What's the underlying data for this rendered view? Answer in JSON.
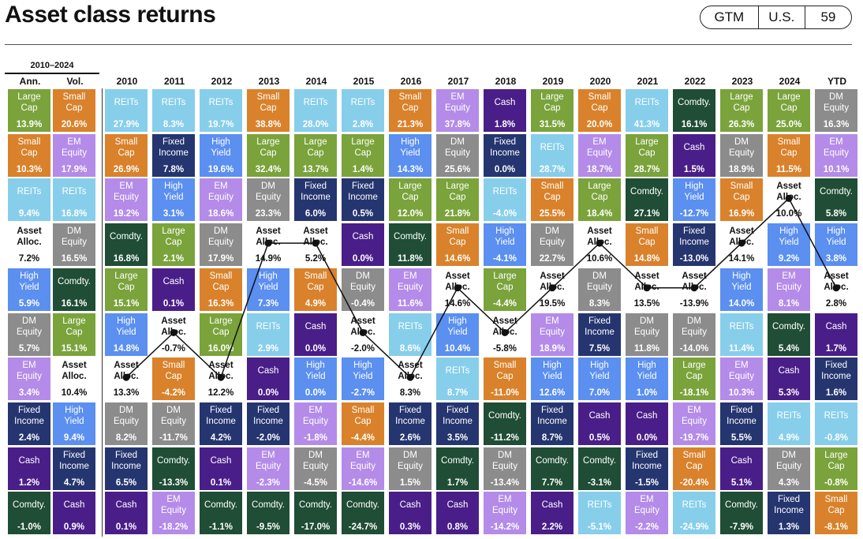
{
  "header": {
    "title": "Asset class returns",
    "badge": [
      "GTM",
      "U.S.",
      "59"
    ]
  },
  "period_label": "2010–2024",
  "columns": [
    "Ann.",
    "Vol.",
    "2010",
    "2011",
    "2012",
    "2013",
    "2014",
    "2015",
    "2016",
    "2017",
    "2018",
    "2019",
    "2020",
    "2021",
    "2022",
    "2023",
    "2024",
    "YTD"
  ],
  "colors": {
    "REITs": "#87ceeb",
    "Small Cap": "#d9822b",
    "Large Cap": "#7aa33b",
    "EM Equity": "#b48be8",
    "DM Equity": "#8c8c8c",
    "Fixed Income": "#25356f",
    "High Yield": "#5b8ff0",
    "Cash": "#4a1e88",
    "Comdty.": "#1f4d35",
    "Asset Alloc.": "#ffffff"
  },
  "chart_data": {
    "type": "table",
    "title": "Asset class returns",
    "columns": [
      "Ann.",
      "Vol.",
      "2010",
      "2011",
      "2012",
      "2013",
      "2014",
      "2015",
      "2016",
      "2017",
      "2018",
      "2019",
      "2020",
      "2021",
      "2022",
      "2023",
      "2024",
      "YTD"
    ],
    "series_highlight": "Asset Alloc.",
    "data": [
      [
        [
          "Large Cap",
          "13.9%"
        ],
        [
          "Small Cap",
          "10.3%"
        ],
        [
          "REITs",
          "9.4%"
        ],
        [
          "Asset Alloc.",
          "7.2%"
        ],
        [
          "High Yield",
          "5.9%"
        ],
        [
          "DM Equity",
          "5.7%"
        ],
        [
          "EM Equity",
          "3.4%"
        ],
        [
          "Fixed Income",
          "2.4%"
        ],
        [
          "Cash",
          "1.2%"
        ],
        [
          "Comdty.",
          "-1.0%"
        ]
      ],
      [
        [
          "Small Cap",
          "20.6%"
        ],
        [
          "EM Equity",
          "17.9%"
        ],
        [
          "REITs",
          "16.8%"
        ],
        [
          "DM Equity",
          "16.5%"
        ],
        [
          "Comdty.",
          "16.1%"
        ],
        [
          "Large Cap",
          "15.1%"
        ],
        [
          "Asset Alloc.",
          "10.4%"
        ],
        [
          "High Yield",
          "9.4%"
        ],
        [
          "Fixed Income",
          "4.7%"
        ],
        [
          "Cash",
          "0.9%"
        ]
      ],
      [
        [
          "REITs",
          "27.9%"
        ],
        [
          "Small Cap",
          "26.9%"
        ],
        [
          "EM Equity",
          "19.2%"
        ],
        [
          "Comdty.",
          "16.8%"
        ],
        [
          "Large Cap",
          "15.1%"
        ],
        [
          "High Yield",
          "14.8%"
        ],
        [
          "Asset Alloc.",
          "13.3%"
        ],
        [
          "DM Equity",
          "8.2%"
        ],
        [
          "Fixed Income",
          "6.5%"
        ],
        [
          "Cash",
          "0.1%"
        ]
      ],
      [
        [
          "REITs",
          "8.3%"
        ],
        [
          "Fixed Income",
          "7.8%"
        ],
        [
          "High Yield",
          "3.1%"
        ],
        [
          "Large Cap",
          "2.1%"
        ],
        [
          "Cash",
          "0.1%"
        ],
        [
          "Asset Alloc.",
          "-0.7%"
        ],
        [
          "Small Cap",
          "-4.2%"
        ],
        [
          "DM Equity",
          "-11.7%"
        ],
        [
          "Comdty.",
          "-13.3%"
        ],
        [
          "EM Equity",
          "-18.2%"
        ]
      ],
      [
        [
          "REITs",
          "19.7%"
        ],
        [
          "High Yield",
          "19.6%"
        ],
        [
          "EM Equity",
          "18.6%"
        ],
        [
          "DM Equity",
          "17.9%"
        ],
        [
          "Small Cap",
          "16.3%"
        ],
        [
          "Large Cap",
          "16.0%"
        ],
        [
          "Asset Alloc.",
          "12.2%"
        ],
        [
          "Fixed Income",
          "4.2%"
        ],
        [
          "Cash",
          "0.1%"
        ],
        [
          "Comdty.",
          "-1.1%"
        ]
      ],
      [
        [
          "Small Cap",
          "38.8%"
        ],
        [
          "Large Cap",
          "32.4%"
        ],
        [
          "DM Equity",
          "23.3%"
        ],
        [
          "Asset Alloc.",
          "14.9%"
        ],
        [
          "High Yield",
          "7.3%"
        ],
        [
          "REITs",
          "2.9%"
        ],
        [
          "Cash",
          "0.0%"
        ],
        [
          "Fixed Income",
          "-2.0%"
        ],
        [
          "EM Equity",
          "-2.3%"
        ],
        [
          "Comdty.",
          "-9.5%"
        ]
      ],
      [
        [
          "REITs",
          "28.0%"
        ],
        [
          "Large Cap",
          "13.7%"
        ],
        [
          "Fixed Income",
          "6.0%"
        ],
        [
          "Asset Alloc.",
          "5.2%"
        ],
        [
          "Small Cap",
          "4.9%"
        ],
        [
          "Cash",
          "0.0%"
        ],
        [
          "High Yield",
          "0.0%"
        ],
        [
          "EM Equity",
          "-1.8%"
        ],
        [
          "DM Equity",
          "-4.5%"
        ],
        [
          "Comdty.",
          "-17.0%"
        ]
      ],
      [
        [
          "REITs",
          "2.8%"
        ],
        [
          "Large Cap",
          "1.4%"
        ],
        [
          "Fixed Income",
          "0.5%"
        ],
        [
          "Cash",
          "0.0%"
        ],
        [
          "DM Equity",
          "-0.4%"
        ],
        [
          "Asset Alloc.",
          "-2.0%"
        ],
        [
          "High Yield",
          "-2.7%"
        ],
        [
          "Small Cap",
          "-4.4%"
        ],
        [
          "EM Equity",
          "-14.6%"
        ],
        [
          "Comdty.",
          "-24.7%"
        ]
      ],
      [
        [
          "Small Cap",
          "21.3%"
        ],
        [
          "High Yield",
          "14.3%"
        ],
        [
          "Large Cap",
          "12.0%"
        ],
        [
          "Comdty.",
          "11.8%"
        ],
        [
          "EM Equity",
          "11.6%"
        ],
        [
          "REITs",
          "8.6%"
        ],
        [
          "Asset Alloc.",
          "8.3%"
        ],
        [
          "Fixed Income",
          "2.6%"
        ],
        [
          "DM Equity",
          "1.5%"
        ],
        [
          "Cash",
          "0.3%"
        ]
      ],
      [
        [
          "EM Equity",
          "37.8%"
        ],
        [
          "DM Equity",
          "25.6%"
        ],
        [
          "Large Cap",
          "21.8%"
        ],
        [
          "Small Cap",
          "14.6%"
        ],
        [
          "Asset Alloc.",
          "14.6%"
        ],
        [
          "High Yield",
          "10.4%"
        ],
        [
          "REITs",
          "8.7%"
        ],
        [
          "Fixed Income",
          "3.5%"
        ],
        [
          "Comdty.",
          "1.7%"
        ],
        [
          "Cash",
          "0.8%"
        ]
      ],
      [
        [
          "Cash",
          "1.8%"
        ],
        [
          "Fixed Income",
          "0.0%"
        ],
        [
          "REITs",
          "-4.0%"
        ],
        [
          "High Yield",
          "-4.1%"
        ],
        [
          "Large Cap",
          "-4.4%"
        ],
        [
          "Asset Alloc.",
          "-5.8%"
        ],
        [
          "Small Cap",
          "-11.0%"
        ],
        [
          "Comdty.",
          "-11.2%"
        ],
        [
          "DM Equity",
          "-13.4%"
        ],
        [
          "EM Equity",
          "-14.2%"
        ]
      ],
      [
        [
          "Large Cap",
          "31.5%"
        ],
        [
          "REITs",
          "28.7%"
        ],
        [
          "Small Cap",
          "25.5%"
        ],
        [
          "DM Equity",
          "22.7%"
        ],
        [
          "Asset Alloc.",
          "19.5%"
        ],
        [
          "EM Equity",
          "18.9%"
        ],
        [
          "High Yield",
          "12.6%"
        ],
        [
          "Fixed Income",
          "8.7%"
        ],
        [
          "Comdty.",
          "7.7%"
        ],
        [
          "Cash",
          "2.2%"
        ]
      ],
      [
        [
          "Small Cap",
          "20.0%"
        ],
        [
          "EM Equity",
          "18.7%"
        ],
        [
          "Large Cap",
          "18.4%"
        ],
        [
          "Asset Alloc.",
          "10.6%"
        ],
        [
          "DM Equity",
          "8.3%"
        ],
        [
          "Fixed Income",
          "7.5%"
        ],
        [
          "High Yield",
          "7.0%"
        ],
        [
          "Cash",
          "0.5%"
        ],
        [
          "Comdty.",
          "-3.1%"
        ],
        [
          "REITs",
          "-5.1%"
        ]
      ],
      [
        [
          "REITs",
          "41.3%"
        ],
        [
          "Large Cap",
          "28.7%"
        ],
        [
          "Comdty.",
          "27.1%"
        ],
        [
          "Small Cap",
          "14.8%"
        ],
        [
          "Asset Alloc.",
          "13.5%"
        ],
        [
          "DM Equity",
          "11.8%"
        ],
        [
          "High Yield",
          "1.0%"
        ],
        [
          "Cash",
          "0.0%"
        ],
        [
          "Fixed Income",
          "-1.5%"
        ],
        [
          "EM Equity",
          "-2.2%"
        ]
      ],
      [
        [
          "Comdty.",
          "16.1%"
        ],
        [
          "Cash",
          "1.5%"
        ],
        [
          "High Yield",
          "-12.7%"
        ],
        [
          "Fixed Income",
          "-13.0%"
        ],
        [
          "Asset Alloc.",
          "-13.9%"
        ],
        [
          "DM Equity",
          "-14.0%"
        ],
        [
          "Large Cap",
          "-18.1%"
        ],
        [
          "EM Equity",
          "-19.7%"
        ],
        [
          "Small Cap",
          "-20.4%"
        ],
        [
          "REITs",
          "-24.9%"
        ]
      ],
      [
        [
          "Large Cap",
          "26.3%"
        ],
        [
          "DM Equity",
          "18.9%"
        ],
        [
          "Small Cap",
          "16.9%"
        ],
        [
          "Asset Alloc.",
          "14.1%"
        ],
        [
          "High Yield",
          "14.0%"
        ],
        [
          "REITs",
          "11.4%"
        ],
        [
          "EM Equity",
          "10.3%"
        ],
        [
          "Fixed Income",
          "5.5%"
        ],
        [
          "Cash",
          "5.1%"
        ],
        [
          "Comdty.",
          "-7.9%"
        ]
      ],
      [
        [
          "Large Cap",
          "25.0%"
        ],
        [
          "Small Cap",
          "11.5%"
        ],
        [
          "Asset Alloc.",
          "10.0%"
        ],
        [
          "High Yield",
          "9.2%"
        ],
        [
          "EM Equity",
          "8.1%"
        ],
        [
          "Comdty.",
          "5.4%"
        ],
        [
          "Cash",
          "5.3%"
        ],
        [
          "REITs",
          "4.9%"
        ],
        [
          "DM Equity",
          "4.3%"
        ],
        [
          "Fixed Income",
          "1.3%"
        ]
      ],
      [
        [
          "DM Equity",
          "16.3%"
        ],
        [
          "EM Equity",
          "10.1%"
        ],
        [
          "Comdty.",
          "5.8%"
        ],
        [
          "High Yield",
          "3.8%"
        ],
        [
          "Asset Alloc.",
          "2.8%"
        ],
        [
          "Cash",
          "1.7%"
        ],
        [
          "Fixed Income",
          "1.6%"
        ],
        [
          "REITs",
          "-0.8%"
        ],
        [
          "Large Cap",
          "-0.8%"
        ],
        [
          "Small Cap",
          "-8.1%"
        ]
      ]
    ]
  }
}
